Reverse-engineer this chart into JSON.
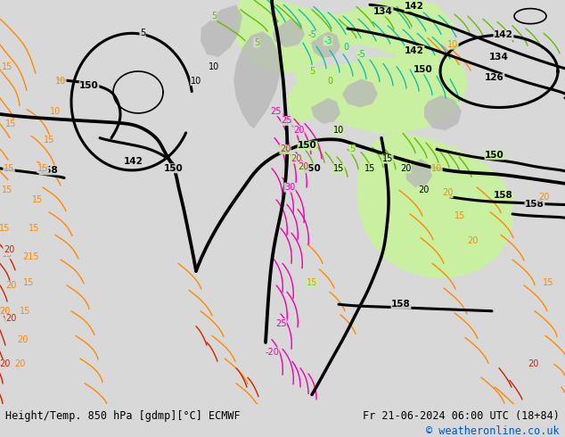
{
  "title_left": "Height/Temp. 850 hPa [gdmp][°C] ECMWF",
  "title_right": "Fr 21-06-2024 06:00 UTC (18+84)",
  "copyright": "© weatheronline.co.uk",
  "bg_color": "#d8d8d8",
  "map_bg_color": "#d8d8d8",
  "green_fill_color": "#c8f0a0",
  "gray_terrain_color": "#b8b8b8",
  "bottom_bar_color": "#e0e0e0",
  "text_color": "#000000",
  "copyright_color": "#0055cc",
  "font_size_bottom": 9,
  "figsize": [
    6.34,
    4.9
  ],
  "dpi": 100,
  "black_contour_color": "#000000",
  "green_label_color": "#66bb00",
  "orange_contour_color": "#ff8800",
  "cyan_contour_color": "#00bbaa",
  "magenta_contour_color": "#ee00aa",
  "red_contour_color": "#cc2200",
  "lw_thick": 2.2,
  "lw_thin": 1.1
}
